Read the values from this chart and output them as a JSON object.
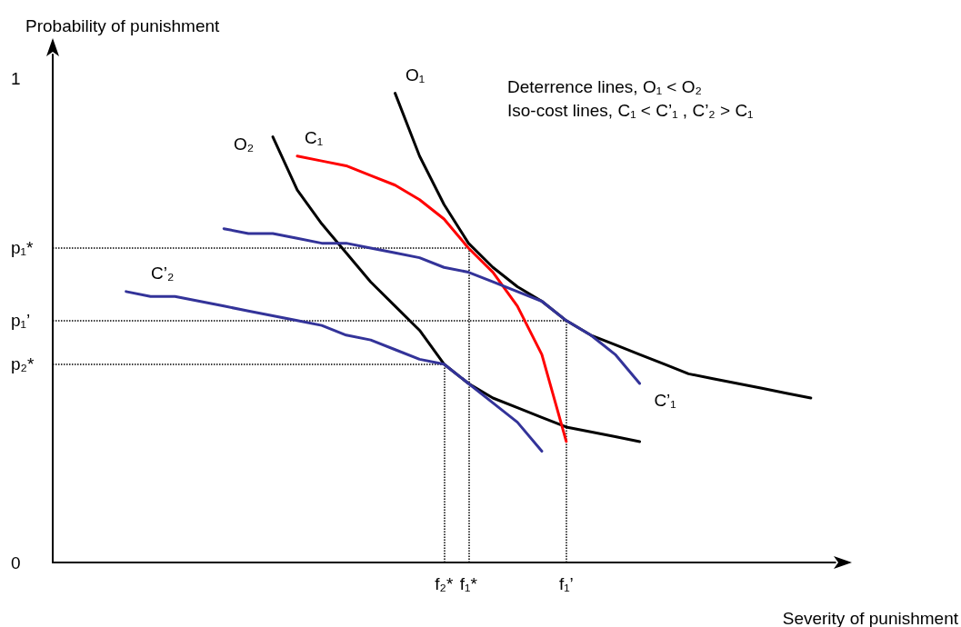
{
  "chart_data": {
    "type": "line",
    "xlabel": "Severity of punishment",
    "ylabel": "Probability of punishment",
    "annotations": [
      "Deterrence lines, O₁ < O₂",
      "Iso-cost lines, C₁ < C’₁ , C’₂ > C₁"
    ],
    "categories": [
      null,
      null,
      null,
      null,
      null,
      null,
      null,
      null,
      null,
      null,
      null,
      null,
      null,
      null,
      null,
      null,
      "f₂*",
      "f₁*",
      null,
      null,
      null,
      "f₁’",
      null,
      null,
      null,
      null,
      null,
      null,
      null,
      null,
      null,
      null,
      null
    ],
    "ylim": [
      0,
      1.05
    ],
    "yticks": [
      0,
      {
        "value": 0.41,
        "label": "p₂*"
      },
      {
        "value": 0.5,
        "label": "p₁’"
      },
      {
        "value": 0.65,
        "label": "p₁*"
      },
      1
    ],
    "series": [
      {
        "name": "O₁",
        "color": "#000000",
        "values": [
          null,
          null,
          null,
          null,
          null,
          null,
          null,
          null,
          null,
          null,
          null,
          null,
          null,
          null,
          0.97,
          0.84,
          0.74,
          0.66,
          0.61,
          0.57,
          0.54,
          0.5,
          0.47,
          0.45,
          0.43,
          0.41,
          0.39,
          0.38,
          0.37,
          0.36,
          0.35,
          0.34,
          null
        ]
      },
      {
        "name": "O₂",
        "color": "#000000",
        "values": [
          null,
          null,
          null,
          null,
          null,
          null,
          null,
          null,
          null,
          0.88,
          0.77,
          0.7,
          0.64,
          0.58,
          0.53,
          0.48,
          0.41,
          0.37,
          0.34,
          0.32,
          0.3,
          0.28,
          0.27,
          0.26,
          0.25,
          null,
          null,
          null,
          null,
          null,
          null,
          null,
          null
        ]
      },
      {
        "name": "C₁",
        "color": "#ff0000",
        "values": [
          null,
          null,
          null,
          null,
          null,
          null,
          null,
          null,
          null,
          null,
          0.84,
          0.83,
          0.82,
          0.8,
          0.78,
          0.75,
          0.71,
          0.65,
          0.6,
          0.53,
          0.43,
          0.25,
          null,
          null,
          null,
          null,
          null,
          null,
          null,
          null,
          null,
          null,
          null
        ]
      },
      {
        "name": "C’₁",
        "color": "#333399",
        "values": [
          null,
          null,
          null,
          null,
          null,
          null,
          null,
          0.69,
          0.68,
          0.68,
          0.67,
          0.66,
          0.66,
          0.65,
          0.64,
          0.63,
          0.61,
          0.6,
          0.58,
          0.56,
          0.54,
          0.5,
          0.47,
          0.43,
          0.37,
          null,
          null,
          null,
          null,
          null,
          null,
          null,
          null
        ]
      },
      {
        "name": "C’₂",
        "color": "#333399",
        "values": [
          null,
          null,
          null,
          0.56,
          0.55,
          0.55,
          0.54,
          0.53,
          0.52,
          0.51,
          0.5,
          0.49,
          0.47,
          0.46,
          0.44,
          0.42,
          0.41,
          0.37,
          0.33,
          0.29,
          0.23,
          null,
          null,
          null,
          null,
          null,
          null,
          null,
          null,
          null,
          null,
          null,
          null
        ]
      }
    ],
    "ref_lines": [
      {
        "axis": "y",
        "value": 0.65,
        "color": "#000000",
        "line_style": "dotted"
      },
      {
        "axis": "x",
        "value": "f₁*",
        "color": "#000000",
        "line_style": "dotted"
      },
      {
        "axis": "y",
        "value": 0.5,
        "color": "#000000",
        "line_style": "dotted"
      },
      {
        "axis": "x",
        "value": "f₁’",
        "color": "#000000",
        "line_style": "dotted"
      },
      {
        "axis": "y",
        "value": 0.41,
        "color": "#000000",
        "line_style": "dotted"
      },
      {
        "axis": "x",
        "value": "f₂*",
        "color": "#000000",
        "line_style": "dotted"
      }
    ]
  }
}
